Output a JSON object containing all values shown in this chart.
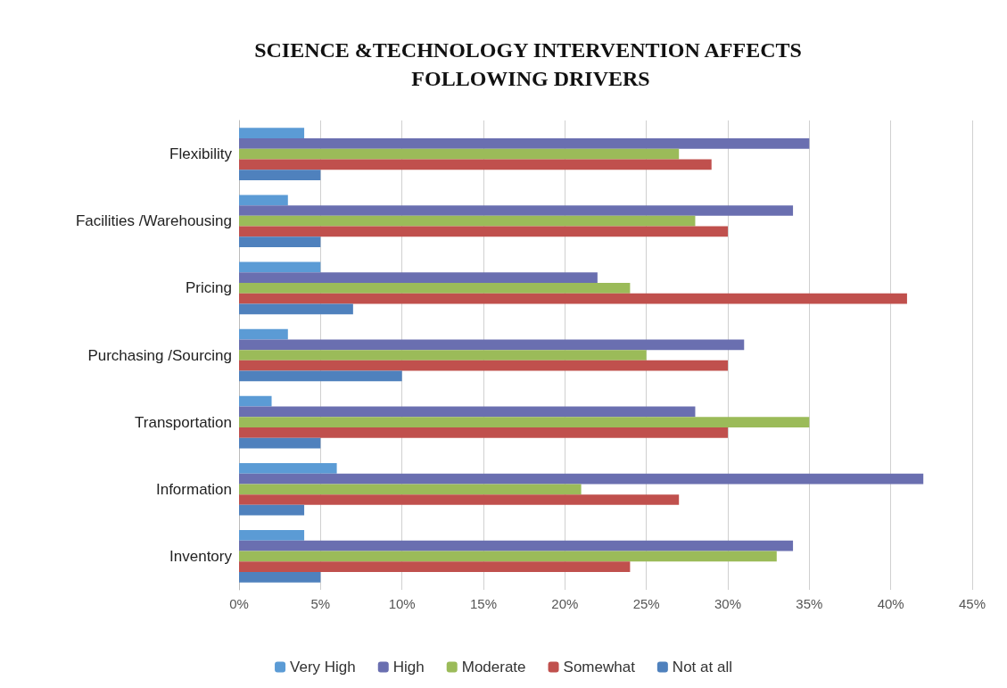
{
  "chart_data": {
    "type": "bar",
    "orientation": "horizontal",
    "title": "SCIENCE &TECHNOLOGY INTERVENTION AFFECTS FOLLOWING DRIVERS",
    "categories": [
      "Flexibility",
      "Facilities /Warehousing",
      "Pricing",
      "Purchasing /Sourcing",
      "Transportation",
      "Information",
      "Inventory"
    ],
    "series": [
      {
        "name": "Very High",
        "color": "#5b9bd5",
        "values": [
          4,
          3,
          5,
          3,
          2,
          6,
          4
        ]
      },
      {
        "name": "High",
        "color": "#6a6fb0",
        "values": [
          35,
          34,
          22,
          31,
          28,
          42,
          34
        ]
      },
      {
        "name": "Moderate",
        "color": "#9bbb59",
        "values": [
          27,
          28,
          24,
          25,
          35,
          21,
          33
        ]
      },
      {
        "name": "Somewhat",
        "color": "#c0504d",
        "values": [
          29,
          30,
          41,
          30,
          30,
          27,
          24
        ]
      },
      {
        "name": "Not at all",
        "color": "#4f81bd",
        "values": [
          5,
          5,
          7,
          10,
          5,
          4,
          5
        ]
      }
    ],
    "xlim": [
      0,
      45
    ],
    "xticks": [
      {
        "value": 0,
        "label": "0%"
      },
      {
        "value": 5,
        "label": "5%"
      },
      {
        "value": 10,
        "label": "10%"
      },
      {
        "value": 15,
        "label": "15%"
      },
      {
        "value": 20,
        "label": "20%"
      },
      {
        "value": 25,
        "label": "25%"
      },
      {
        "value": 30,
        "label": "30%"
      },
      {
        "value": 35,
        "label": "35%"
      },
      {
        "value": 40,
        "label": "40%"
      },
      {
        "value": 45,
        "label": "45%"
      }
    ],
    "grid": "x",
    "legend": "bottom"
  }
}
